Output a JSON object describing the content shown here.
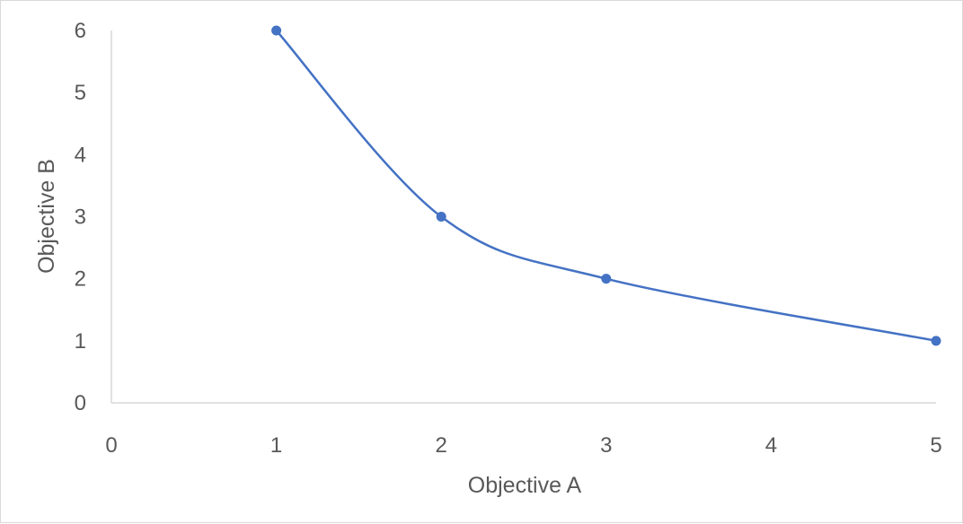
{
  "chart_data": {
    "type": "scatter",
    "subtype": "smooth-line-with-markers",
    "title": "",
    "xlabel": "Objective A",
    "ylabel": "Objective B",
    "xlim": [
      0,
      5
    ],
    "ylim": [
      0,
      6
    ],
    "x_ticks": [
      0,
      1,
      2,
      3,
      4,
      5
    ],
    "y_ticks": [
      0,
      1,
      2,
      3,
      4,
      5,
      6
    ],
    "grid": false,
    "legend": "none",
    "series": [
      {
        "color": "#4472c4",
        "points": [
          {
            "x": 1,
            "y": 6
          },
          {
            "x": 2,
            "y": 3
          },
          {
            "x": 3,
            "y": 2
          },
          {
            "x": 5,
            "y": 1
          }
        ]
      }
    ]
  }
}
